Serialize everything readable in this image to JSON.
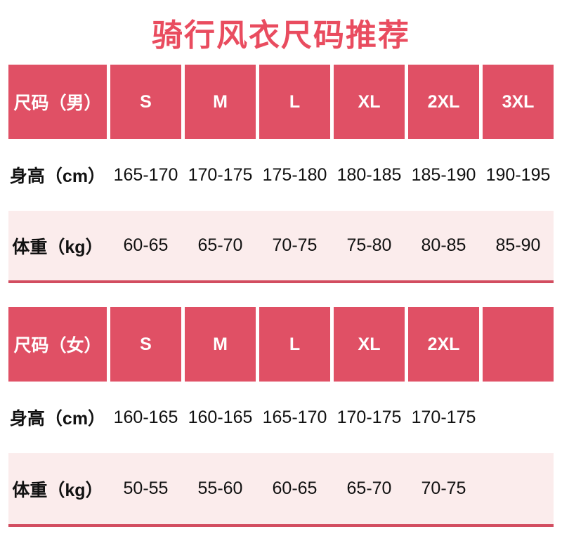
{
  "title": "骑行风衣尺码推荐",
  "colors": {
    "title": "#e94c5f",
    "header_bg": "#e05065",
    "header_text": "#ffffff",
    "row_alt_bg": "#fbecec",
    "divider": "#d24d60",
    "body_text": "#111111"
  },
  "chart_data": [
    {
      "type": "table",
      "title": "骑行风衣尺码推荐",
      "group": "男",
      "columns": [
        "尺码（男）",
        "S",
        "M",
        "L",
        "XL",
        "2XL",
        "3XL"
      ],
      "rows": [
        [
          "身高（cm）",
          "165-170",
          "170-175",
          "175-180",
          "180-185",
          "185-190",
          "190-195"
        ],
        [
          "体重（kg）",
          "60-65",
          "65-70",
          "70-75",
          "75-80",
          "80-85",
          "85-90"
        ]
      ]
    },
    {
      "type": "table",
      "group": "女",
      "columns": [
        "尺码（女）",
        "S",
        "M",
        "L",
        "XL",
        "2XL",
        ""
      ],
      "rows": [
        [
          "身高（cm）",
          "160-165",
          "160-165",
          "165-170",
          "170-175",
          "170-175",
          ""
        ],
        [
          "体重（kg）",
          "50-55",
          "55-60",
          "60-65",
          "65-70",
          "70-75",
          ""
        ]
      ]
    }
  ]
}
